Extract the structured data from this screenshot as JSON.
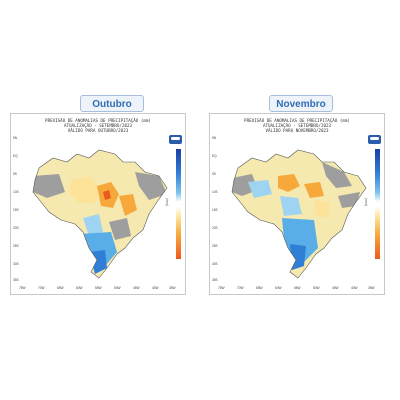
{
  "panels": [
    {
      "month_label": "Outubro",
      "title_line1": "PREVISÃO DE ANOMALIAS DE PRECIPITAÇÃO (mm)",
      "title_line2": "ATUALIZAÇÃO - SETEMBRO/2023",
      "title_line3": "VÁLIDO PARA OUTUBRO/2023"
    },
    {
      "month_label": "Novembro",
      "title_line1": "PREVISÃO DE ANOMALIAS DE PRECIPITAÇÃO (mm)",
      "title_line2": "ATUALIZAÇÃO - SETEMBRO/2023",
      "title_line3": "VÁLIDO PARA NOVEMBRO/2023"
    }
  ],
  "lat_labels": [
    "5N",
    "EQ",
    "5S",
    "10S",
    "15S",
    "20S",
    "25S",
    "30S",
    "35S"
  ],
  "lon_labels": [
    "75W",
    "70W",
    "65W",
    "60W",
    "55W",
    "50W",
    "45W",
    "40W",
    "35W"
  ],
  "colorbar_unit": "(mm)",
  "colors": {
    "dry_strong": "#ea5a1e",
    "dry": "#f7a83b",
    "dry_weak": "#fde39a",
    "neutral": "#f5e9b0",
    "no_signal": "#9e9e9e",
    "wet_weak": "#9fd3f2",
    "wet": "#59aee8",
    "wet_strong": "#2f7fd6"
  }
}
